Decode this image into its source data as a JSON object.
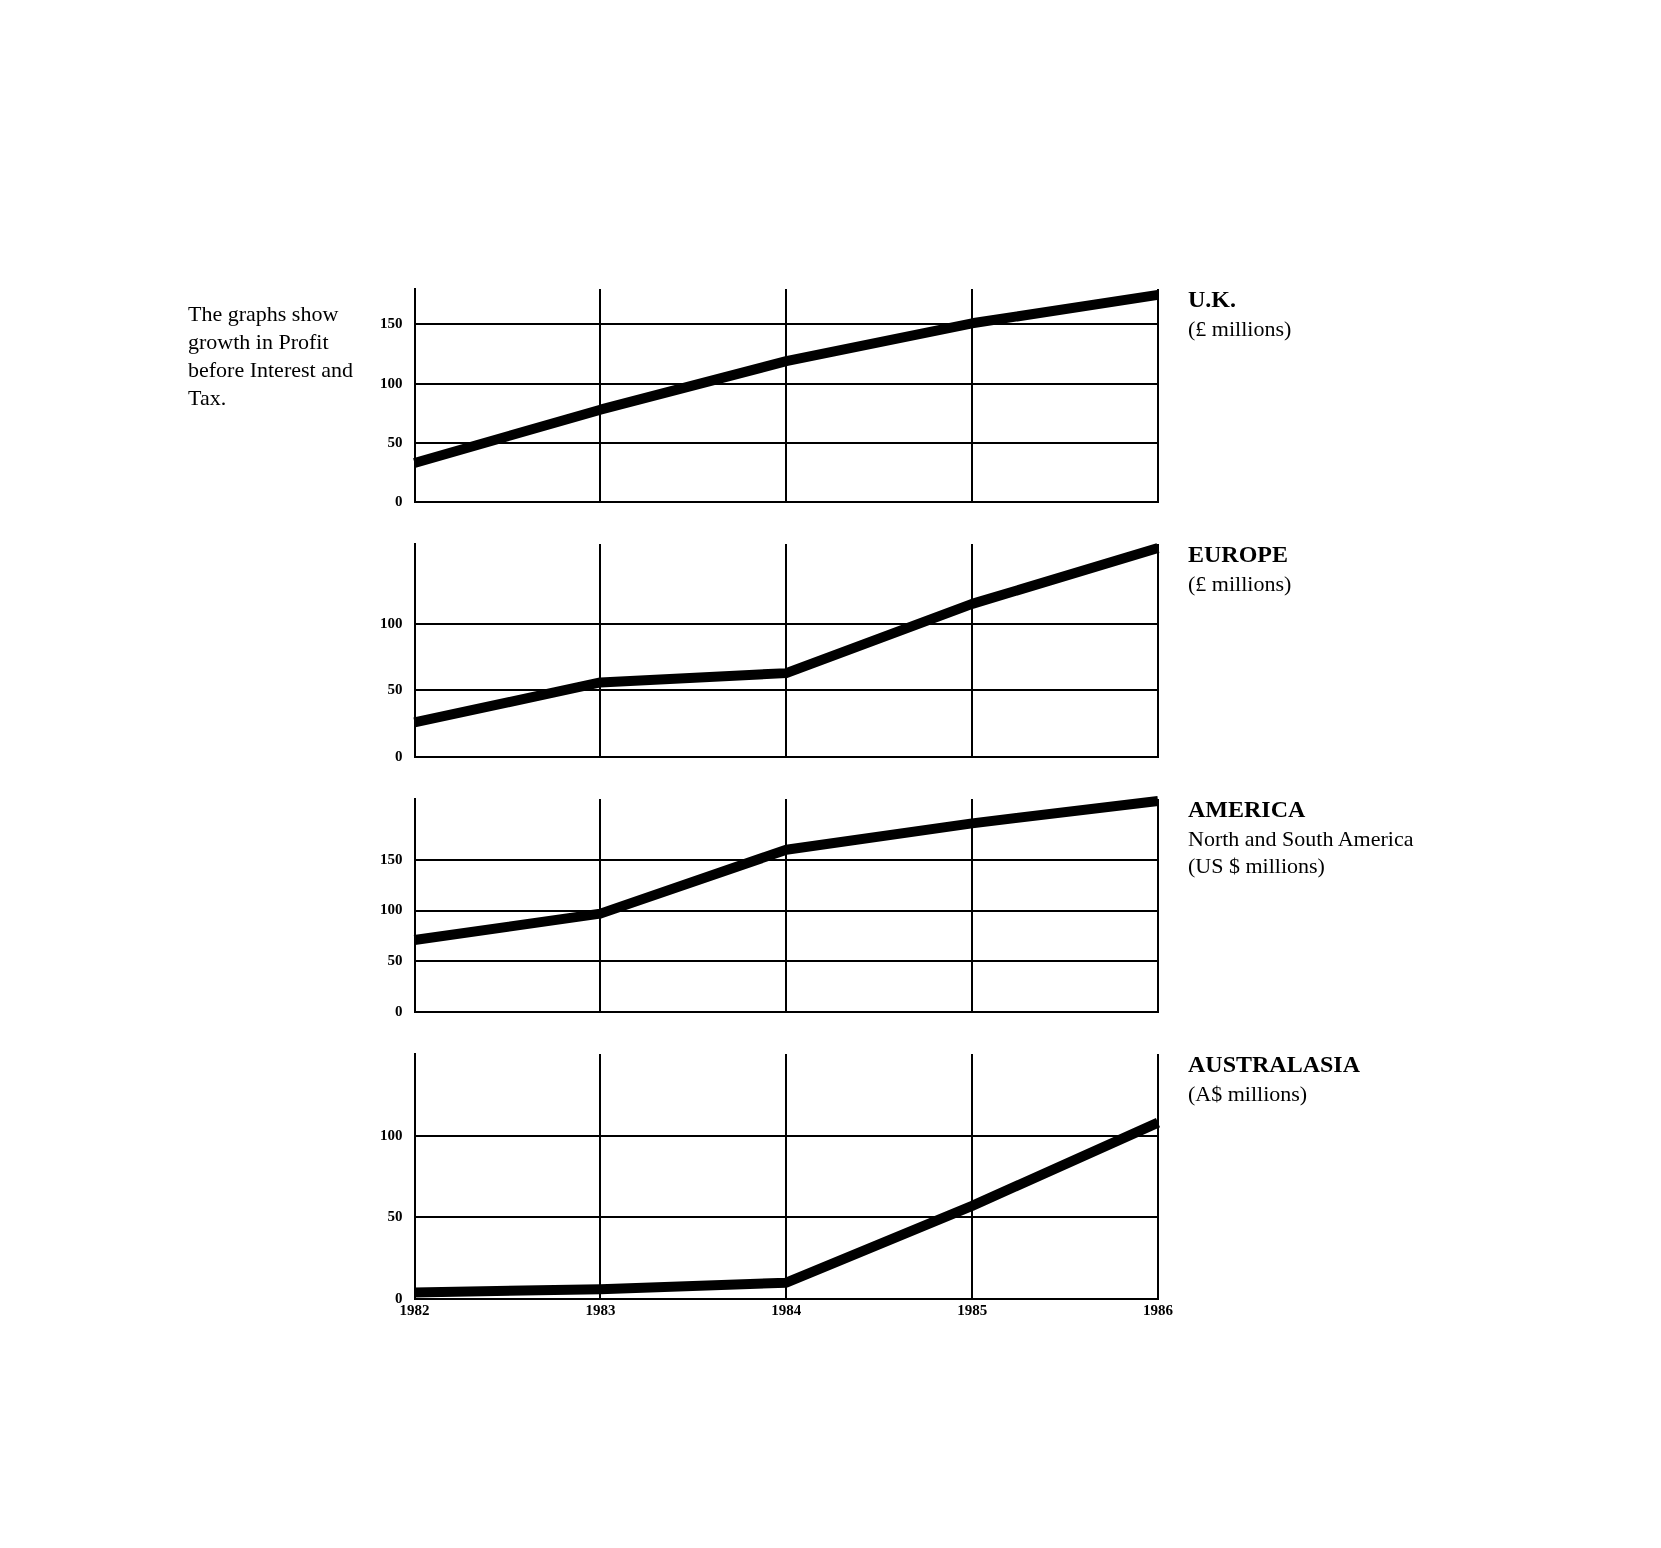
{
  "chart_data": [
    {
      "type": "other",
      "annotations": [
        "The graphs show growth in Profit before Interest and Tax."
      ]
    },
    {
      "type": "line",
      "annotations": [
        "U.K.",
        "(£ millions)"
      ],
      "x": [
        1982,
        1983,
        1984,
        1985,
        1986
      ],
      "values": [
        33,
        78,
        119,
        151,
        175
      ],
      "color": "#000000",
      "xlim": [
        1982,
        1986
      ],
      "xticks": [
        1982,
        1983,
        1984,
        1985,
        1986
      ],
      "ylim": [
        0,
        180
      ],
      "yticks": [
        0,
        50,
        100,
        150
      ],
      "grid": true,
      "tick_labels": "y"
    },
    {
      "type": "line",
      "annotations": [
        "EUROPE",
        "(£ millions)"
      ],
      "x": [
        1982,
        1983,
        1984,
        1985,
        1986
      ],
      "values": [
        26,
        56,
        63,
        115,
        157
      ],
      "color": "#000000",
      "xlim": [
        1982,
        1986
      ],
      "xticks": [
        1982,
        1983,
        1984,
        1985,
        1986
      ],
      "ylim": [
        0,
        160
      ],
      "yticks": [
        0,
        50,
        100
      ],
      "grid": true,
      "tick_labels": "y"
    },
    {
      "type": "line",
      "annotations": [
        "AMERICA",
        "North and South America",
        "(US $ millions)"
      ],
      "x": [
        1982,
        1983,
        1984,
        1985,
        1986
      ],
      "values": [
        71,
        97,
        160,
        186,
        208
      ],
      "color": "#000000",
      "xlim": [
        1982,
        1986
      ],
      "xticks": [
        1982,
        1983,
        1984,
        1985,
        1986
      ],
      "ylim": [
        0,
        210
      ],
      "yticks": [
        0,
        50,
        100,
        150
      ],
      "grid": true,
      "tick_labels": "y"
    },
    {
      "type": "line",
      "annotations": [
        "AUSTRALASIA",
        "(A$ millions)"
      ],
      "x": [
        1982,
        1983,
        1984,
        1985,
        1986
      ],
      "values": [
        4,
        6,
        10,
        57,
        108
      ],
      "color": "#000000",
      "xlim": [
        1982,
        1986
      ],
      "xticks": [
        1982,
        1983,
        1984,
        1985,
        1986
      ],
      "ylim": [
        0,
        150
      ],
      "yticks": [
        0,
        50,
        100
      ],
      "grid": true
    }
  ]
}
